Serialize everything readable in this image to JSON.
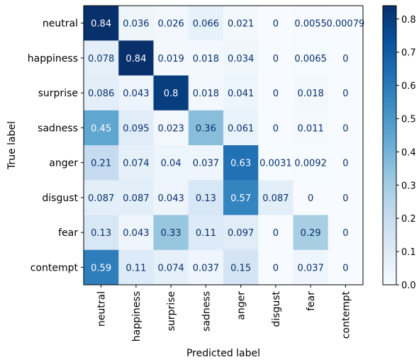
{
  "chart_data": {
    "type": "heatmap",
    "title": "",
    "xlabel": "Predicted label",
    "ylabel": "True label",
    "x_categories": [
      "neutral",
      "happiness",
      "surprise",
      "sadness",
      "anger",
      "disgust",
      "fear",
      "contempt"
    ],
    "y_categories": [
      "neutral",
      "happiness",
      "surprise",
      "sadness",
      "anger",
      "disgust",
      "fear",
      "contempt"
    ],
    "values": [
      [
        0.84,
        0.036,
        0.026,
        0.066,
        0.021,
        0,
        0.0055,
        0.00079
      ],
      [
        0.078,
        0.84,
        0.019,
        0.018,
        0.034,
        0,
        0.0065,
        0
      ],
      [
        0.086,
        0.043,
        0.8,
        0.018,
        0.041,
        0,
        0.018,
        0
      ],
      [
        0.45,
        0.095,
        0.023,
        0.36,
        0.061,
        0,
        0.011,
        0
      ],
      [
        0.21,
        0.074,
        0.04,
        0.037,
        0.63,
        0.0031,
        0.0092,
        0
      ],
      [
        0.087,
        0.087,
        0.043,
        0.13,
        0.57,
        0.087,
        0,
        0
      ],
      [
        0.13,
        0.043,
        0.33,
        0.11,
        0.097,
        0,
        0.29,
        0
      ],
      [
        0.59,
        0.11,
        0.074,
        0.037,
        0.15,
        0,
        0.037,
        0
      ]
    ],
    "cell_labels": [
      [
        "0.84",
        "0.036",
        "0.026",
        "0.066",
        "0.021",
        "0",
        "0.0055",
        "0.00079"
      ],
      [
        "0.078",
        "0.84",
        "0.019",
        "0.018",
        "0.034",
        "0",
        "0.0065",
        "0"
      ],
      [
        "0.086",
        "0.043",
        "0.8",
        "0.018",
        "0.041",
        "0",
        "0.018",
        "0"
      ],
      [
        "0.45",
        "0.095",
        "0.023",
        "0.36",
        "0.061",
        "0",
        "0.011",
        "0"
      ],
      [
        "0.21",
        "0.074",
        "0.04",
        "0.037",
        "0.63",
        "0.0031",
        "0.0092",
        "0"
      ],
      [
        "0.087",
        "0.087",
        "0.043",
        "0.13",
        "0.57",
        "0.087",
        "0",
        "0"
      ],
      [
        "0.13",
        "0.043",
        "0.33",
        "0.11",
        "0.097",
        "0",
        "0.29",
        "0"
      ],
      [
        "0.59",
        "0.11",
        "0.074",
        "0.037",
        "0.15",
        "0",
        "0.037",
        "0"
      ]
    ],
    "colormap": "Blues",
    "color_range": [
      0,
      0.84
    ],
    "colorbar_ticks": [
      "0.0",
      "0.1",
      "0.2",
      "0.3",
      "0.4",
      "0.5",
      "0.6",
      "0.7",
      "0.8"
    ],
    "colorbar_tick_values": [
      0,
      0.1,
      0.2,
      0.3,
      0.4,
      0.5,
      0.6,
      0.7,
      0.8
    ],
    "grid": false,
    "legend": "colorbar-right"
  },
  "colors": {
    "cmap_stops": [
      "#f7fbff",
      "#deebf7",
      "#c6dbef",
      "#9ecae1",
      "#6baed6",
      "#4292c6",
      "#2171b5",
      "#08519c",
      "#08306b"
    ],
    "text_dark": "#08306b",
    "text_light": "#ffffff",
    "axis": "#000000"
  }
}
